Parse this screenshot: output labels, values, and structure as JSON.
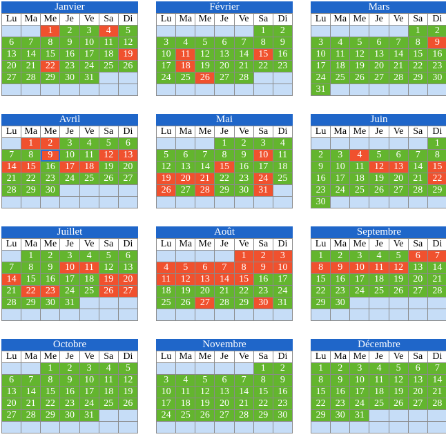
{
  "weekday_labels": [
    "Lu",
    "Ma",
    "Me",
    "Je",
    "Ve",
    "Sa",
    "Di"
  ],
  "colors": {
    "title_bg": "#1f66c9",
    "green": "#63b52e",
    "red": "#f0512e",
    "empty": "#c6ddf7"
  },
  "months": [
    {
      "name": "Janvier",
      "start": 2,
      "days": 31,
      "red": [
        1,
        4,
        19,
        22
      ]
    },
    {
      "name": "Février",
      "start": 5,
      "days": 28,
      "red": [
        11,
        15,
        18,
        26
      ]
    },
    {
      "name": "Mars",
      "start": 5,
      "days": 31,
      "red": [
        9
      ]
    },
    {
      "name": "Avril",
      "start": 1,
      "days": 30,
      "red": [
        1,
        2,
        9,
        12,
        13,
        14,
        15,
        17,
        18
      ],
      "selected": 9
    },
    {
      "name": "Mai",
      "start": 3,
      "days": 31,
      "red": [
        10,
        15,
        19,
        20,
        21,
        24,
        26,
        28,
        31
      ]
    },
    {
      "name": "Juin",
      "start": 6,
      "days": 30,
      "red": [
        4,
        12,
        13,
        15,
        22
      ]
    },
    {
      "name": "Juillet",
      "start": 1,
      "days": 31,
      "red": [
        10,
        11,
        14,
        19,
        20,
        22,
        23,
        26,
        27
      ]
    },
    {
      "name": "Août",
      "start": 4,
      "days": 31,
      "red": [
        1,
        2,
        3,
        4,
        5,
        6,
        7,
        8,
        9,
        10,
        11,
        12,
        13,
        14,
        15,
        27,
        30
      ]
    },
    {
      "name": "Septembre",
      "start": 0,
      "days": 30,
      "red": [
        6,
        7,
        8,
        9,
        10,
        11,
        12
      ]
    },
    {
      "name": "Octobre",
      "start": 2,
      "days": 31,
      "red": []
    },
    {
      "name": "Novembre",
      "start": 5,
      "days": 30,
      "red": []
    },
    {
      "name": "Décembre",
      "start": 0,
      "days": 31,
      "red": []
    }
  ]
}
